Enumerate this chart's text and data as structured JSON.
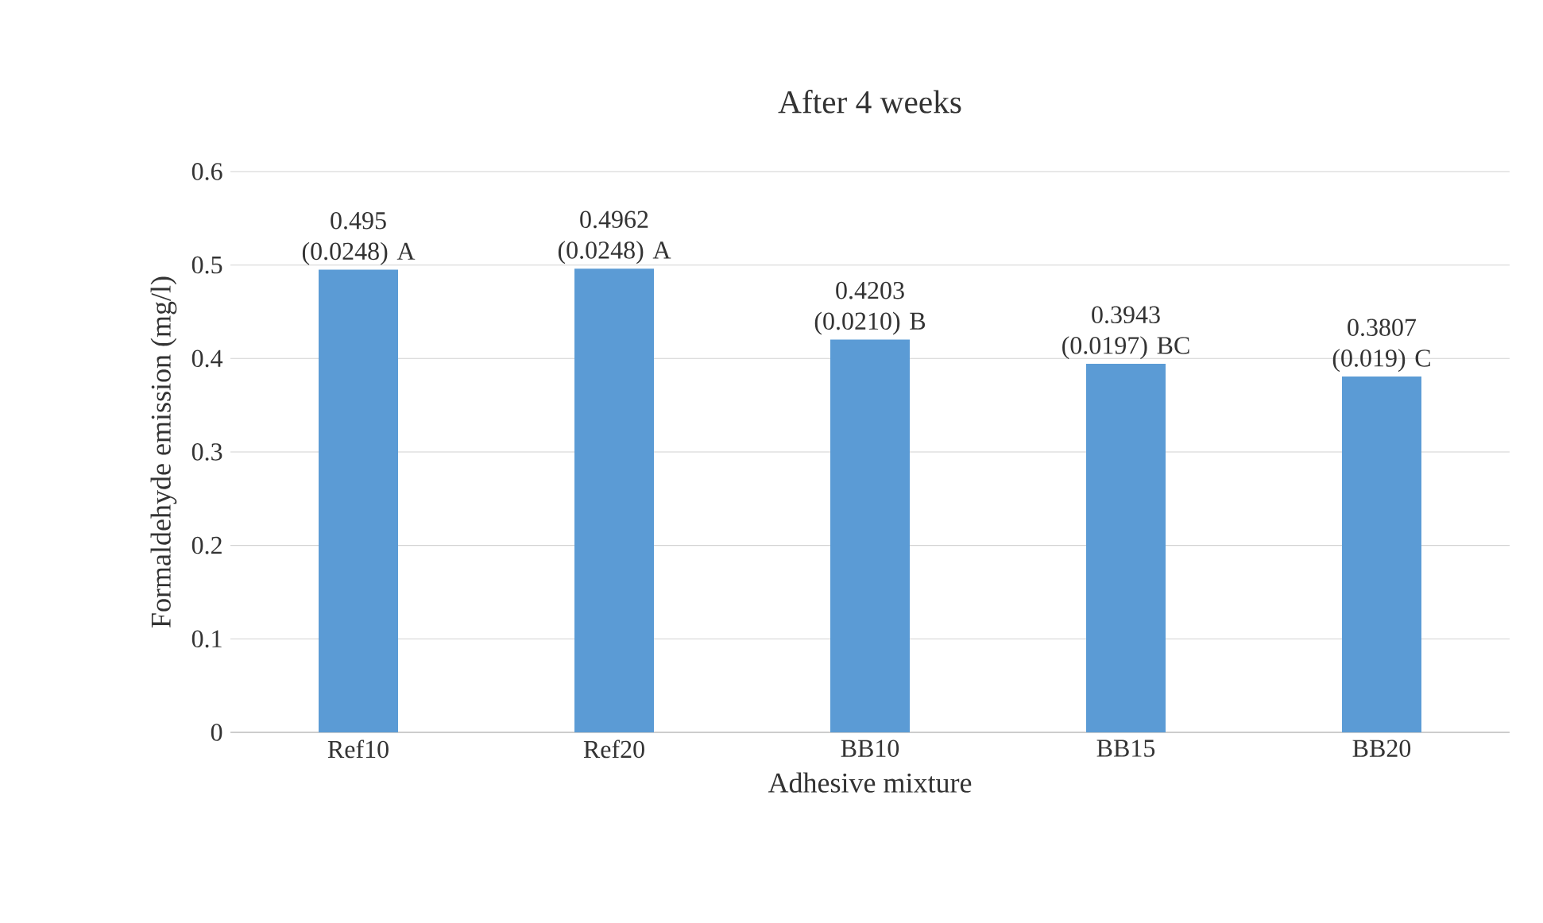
{
  "chart_data": {
    "type": "bar",
    "title": "After 4 weeks",
    "xlabel": "Adhesive mixture",
    "ylabel": "Formaldehyde emission (mg/l)",
    "categories": [
      "Ref10",
      "Ref20",
      "BB10",
      "BB15",
      "BB20"
    ],
    "values": [
      0.495,
      0.4962,
      0.4203,
      0.3943,
      0.3807
    ],
    "value_labels": [
      "0.495 (0.0248) A",
      "0.4962 (0.0248) A",
      "0.4203 (0.0210) B",
      "0.3943 (0.0197) BC",
      "0.3807 (0.019) C"
    ],
    "color": "#5b9bd5",
    "ylim": [
      0,
      0.6
    ],
    "yticks": [
      0,
      0.1,
      0.2,
      0.3,
      0.4,
      0.5,
      0.6
    ],
    "grid": "y"
  }
}
